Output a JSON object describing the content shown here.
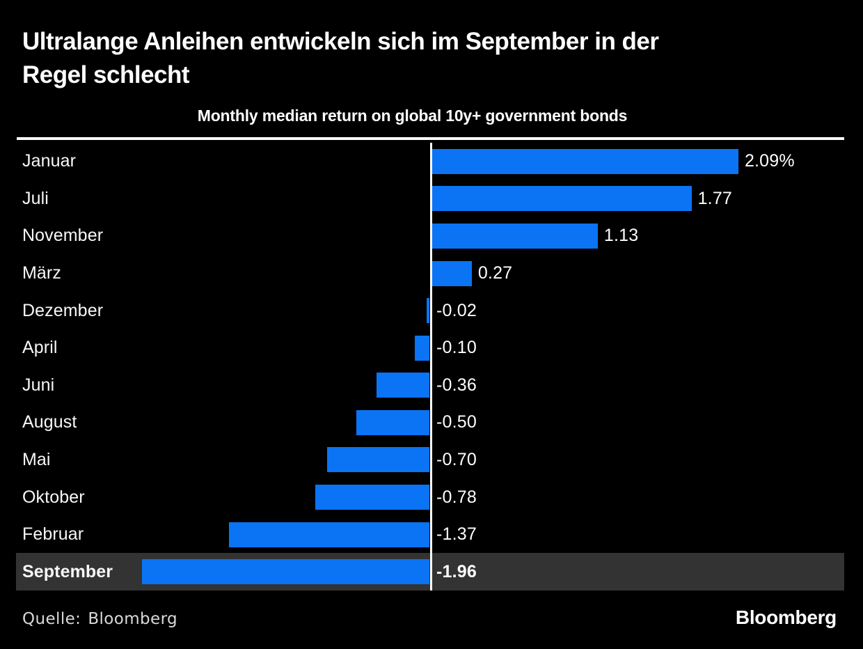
{
  "header": {
    "title": "Ultralange Anleihen entwickeln sich im September in der\nRegel schlecht",
    "subtitle": "Monthly median return on global 10y+ government bonds"
  },
  "chart_data": {
    "type": "bar",
    "orientation": "horizontal",
    "title": "Monthly median return on global 10y+ government bonds",
    "xlabel": "",
    "ylabel": "",
    "unit": "%",
    "categories": [
      "Januar",
      "Juli",
      "November",
      "März",
      "Dezember",
      "April",
      "Juni",
      "August",
      "Mai",
      "Oktober",
      "Februar",
      "September"
    ],
    "values": [
      2.09,
      1.77,
      1.13,
      0.27,
      -0.02,
      -0.1,
      -0.36,
      -0.5,
      -0.7,
      -0.78,
      -1.37,
      -1.96
    ],
    "value_labels": [
      "2.09%",
      "1.77",
      "1.13",
      "0.27",
      "-0.02",
      "-0.10",
      "-0.36",
      "-0.50",
      "-0.70",
      "-0.78",
      "-1.37",
      "-1.96"
    ],
    "highlighted_category": "September",
    "xlim": [
      -2.83,
      2.82
    ],
    "grid": false,
    "legend": false,
    "bar_color": "#0a74f5",
    "highlight_bg": "#333333",
    "axis_line_color": "#ffffff",
    "background_color": "#000000"
  },
  "footer": {
    "source_label": "Quelle:",
    "source_value": "Bloomberg",
    "logo": "Bloomberg"
  }
}
